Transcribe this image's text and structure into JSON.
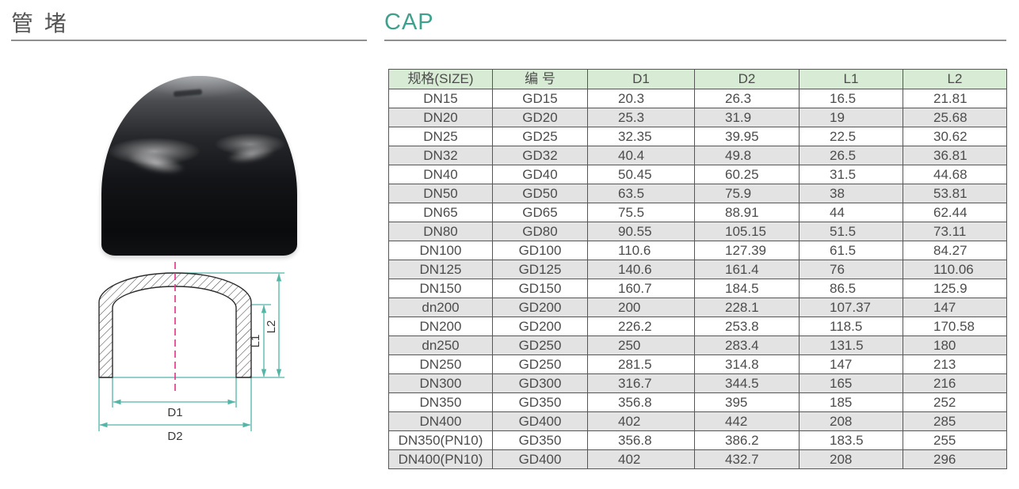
{
  "header": {
    "title_cn": "管 堵",
    "title_en": "CAP",
    "accent_color": "#3fa08e"
  },
  "table": {
    "header_bg": "#d8ebd4",
    "row_alt_bg": "#e3e3e3",
    "headers": [
      "规格(SIZE)",
      "编 号",
      "D1",
      "D2",
      "L1",
      "L2"
    ],
    "rows": [
      [
        "DN15",
        "GD15",
        "20.3",
        "26.3",
        "16.5",
        "21.81"
      ],
      [
        "DN20",
        "GD20",
        "25.3",
        "31.9",
        "19",
        "25.68"
      ],
      [
        "DN25",
        "GD25",
        "32.35",
        "39.95",
        "22.5",
        "30.62"
      ],
      [
        "DN32",
        "GD32",
        "40.4",
        "49.8",
        "26.5",
        "36.81"
      ],
      [
        "DN40",
        "GD40",
        "50.45",
        "60.25",
        "31.5",
        "44.68"
      ],
      [
        "DN50",
        "GD50",
        "63.5",
        "75.9",
        "38",
        "53.81"
      ],
      [
        "DN65",
        "GD65",
        "75.5",
        "88.91",
        "44",
        "62.44"
      ],
      [
        "DN80",
        "GD80",
        "90.55",
        "105.15",
        "51.5",
        "73.11"
      ],
      [
        "DN100",
        "GD100",
        "110.6",
        "127.39",
        "61.5",
        "84.27"
      ],
      [
        "DN125",
        "GD125",
        "140.6",
        "161.4",
        "76",
        "110.06"
      ],
      [
        "DN150",
        "GD150",
        "160.7",
        "184.5",
        "86.5",
        "125.9"
      ],
      [
        "dn200",
        "GD200",
        "200",
        "228.1",
        "107.37",
        "147"
      ],
      [
        "DN200",
        "GD200",
        "226.2",
        "253.8",
        "118.5",
        "170.58"
      ],
      [
        "dn250",
        "GD250",
        "250",
        "283.4",
        "131.5",
        "180"
      ],
      [
        "DN250",
        "GD250",
        "281.5",
        "314.8",
        "147",
        "213"
      ],
      [
        "DN300",
        "GD300",
        "316.7",
        "344.5",
        "165",
        "216"
      ],
      [
        "DN350",
        "GD350",
        "356.8",
        "395",
        "185",
        "252"
      ],
      [
        "DN400",
        "GD400",
        "402",
        "442",
        "208",
        "285"
      ],
      [
        "DN350(PN10)",
        "GD350",
        "356.8",
        "386.2",
        "183.5",
        "255"
      ],
      [
        "DN400(PN10)",
        "GD400",
        "402",
        "432.7",
        "208",
        "296"
      ]
    ]
  },
  "drawing": {
    "labels": {
      "d1": "D1",
      "d2": "D2",
      "l1": "L1",
      "l2": "L2"
    },
    "dimension_color": "#52b5a6",
    "centerline_color": "#e82f86"
  }
}
